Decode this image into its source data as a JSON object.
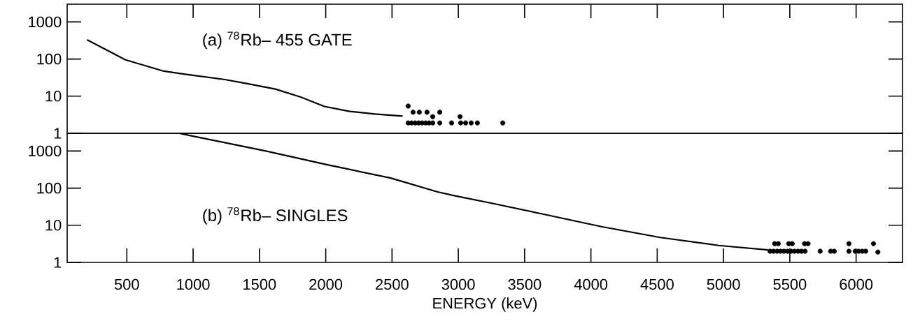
{
  "chart_data": [
    {
      "type": "line",
      "log": "y",
      "xlim": [
        50,
        6350
      ],
      "ylim": [
        1,
        3000
      ],
      "xticks": [
        500,
        1000,
        1500,
        2000,
        2500,
        3000,
        3500,
        4000,
        4500,
        5000,
        5500,
        6000
      ],
      "yticks": [
        1,
        10,
        100,
        1000
      ],
      "tick_labels": "y",
      "annotations": [
        "(a)  $^{78}$Rb– 455 GATE"
      ],
      "series": [
        {
          "color": "#000000",
          "marker": "none",
          "line_style": "solid",
          "x": [
            200,
            490,
            770,
            960,
            1240,
            1430,
            1620,
            1810,
            1990,
            2180,
            2370,
            2580
          ],
          "values": [
            330,
            95,
            48,
            38,
            28,
            21,
            15.5,
            9.5,
            5.3,
            3.9,
            3.3,
            2.9
          ]
        },
        {
          "type": "scatter",
          "color": "#000000",
          "marker": "circle",
          "x": [
            2622,
            2659,
            2706,
            2764,
            2807,
            2860,
            3013,
            2622,
            2648,
            2675,
            2701,
            2727,
            2754,
            2780,
            2807,
            2860,
            2949,
            3018,
            3055,
            3097,
            3144,
            3335
          ],
          "values": [
            5.4,
            3.7,
            3.7,
            3.7,
            2.8,
            3.7,
            2.8,
            1.9,
            1.9,
            1.9,
            1.9,
            1.9,
            1.9,
            1.9,
            1.9,
            1.9,
            1.9,
            1.9,
            1.9,
            1.9,
            1.9,
            1.9
          ]
        }
      ]
    },
    {
      "type": "line",
      "log": "y",
      "xlim": [
        50,
        6350
      ],
      "ylim": [
        1,
        3000
      ],
      "xticks": [
        500,
        1000,
        1500,
        2000,
        2500,
        3000,
        3500,
        4000,
        4500,
        5000,
        5500,
        6000
      ],
      "yticks": [
        1,
        10,
        100,
        1000
      ],
      "xlabel": "ENERGY (keV)",
      "annotations": [
        "(b)  $^{78}$Rb– SINGLES"
      ],
      "series": [
        {
          "color": "#000000",
          "marker": "none",
          "line_style": "solid",
          "x": [
            904,
            1548,
            2019,
            2490,
            2844,
            2976,
            3240,
            3638,
            4079,
            4522,
            4963,
            5337
          ],
          "values": [
            2950,
            1000,
            420,
            187,
            79,
            62,
            40,
            20,
            9.2,
            4.7,
            2.86,
            2.17
          ]
        },
        {
          "type": "scatter",
          "color": "#000000",
          "marker": "circle",
          "x": [
            5386,
            5413,
            5492,
            5518,
            5611,
            5637,
            5946,
            6131,
            5351,
            5377,
            5404,
            5430,
            5456,
            5483,
            5509,
            5536,
            5562,
            5588,
            5615,
            5729,
            5808,
            5835,
            5946,
            5993,
            6019,
            6046,
            6072,
            6164
          ],
          "values": [
            3.2,
            3.2,
            3.2,
            3.2,
            3.2,
            3.2,
            3.2,
            3.2,
            2.0,
            2.0,
            2.0,
            2.0,
            2.0,
            2.0,
            2.0,
            2.0,
            2.0,
            2.0,
            2.0,
            2.0,
            2.0,
            2.0,
            2.0,
            2.0,
            2.0,
            2.0,
            2.0,
            1.9
          ]
        }
      ]
    }
  ]
}
